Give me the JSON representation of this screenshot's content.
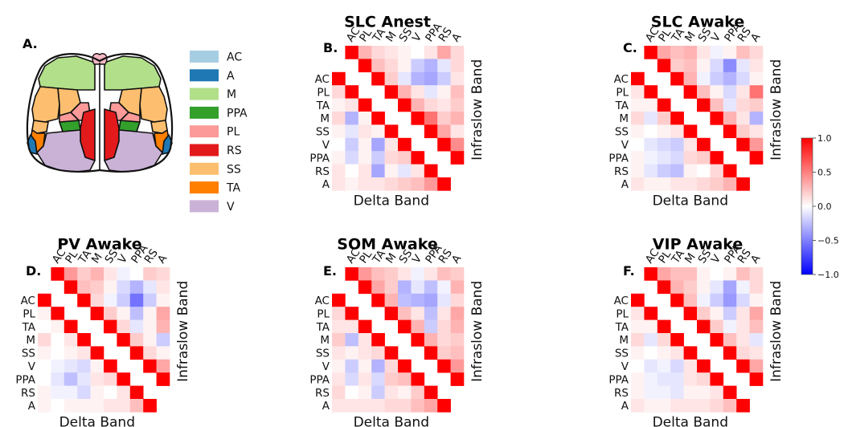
{
  "panel_a": {
    "label": "A.",
    "legend": [
      {
        "name": "AC",
        "color": "#a6cee3"
      },
      {
        "name": "A",
        "color": "#1f78b4"
      },
      {
        "name": "M",
        "color": "#b2df8a"
      },
      {
        "name": "PPA",
        "color": "#33a02c"
      },
      {
        "name": "PL",
        "color": "#fb9a99"
      },
      {
        "name": "RS",
        "color": "#e31a1c"
      },
      {
        "name": "SS",
        "color": "#fdbf6f"
      },
      {
        "name": "TA",
        "color": "#ff7f00"
      },
      {
        "name": "V",
        "color": "#cab2d6"
      }
    ],
    "brain_colors": {
      "olfactory": "#f4b6c2",
      "outline": "#111111"
    }
  },
  "chart_data": [
    {
      "type": "heatmap",
      "panel": "B.",
      "title": "SLC Anest",
      "xlabel": "Delta Band",
      "ylabel": "Infraslow Band",
      "lower_rows": [
        "AC",
        "PL",
        "TA",
        "M",
        "SS",
        "V",
        "PPA",
        "RS",
        "A"
      ],
      "upper_cols": [
        "AC",
        "PL",
        "TA",
        "M",
        "SS",
        "V",
        "PPA",
        "RS",
        "A"
      ],
      "vmin": -1.0,
      "vmax": 1.0,
      "lower": [
        [
          1.0,
          0.15,
          0.05,
          0.1,
          0.0,
          -0.05,
          0.05,
          0.1,
          0.15
        ],
        [
          0.15,
          1.0,
          0.1,
          -0.3,
          -0.05,
          -0.1,
          -0.2,
          -0.05,
          0.05
        ],
        [
          0.05,
          0.1,
          1.0,
          0.05,
          0.1,
          0.05,
          0.05,
          0.1,
          0.1
        ],
        [
          0.15,
          -0.3,
          0.05,
          1.0,
          0.05,
          -0.25,
          -0.2,
          0.1,
          0.2
        ],
        [
          0.05,
          -0.1,
          0.1,
          0.05,
          1.0,
          0.05,
          0.1,
          0.05,
          0.15
        ],
        [
          0.0,
          -0.2,
          0.05,
          -0.35,
          0.1,
          1.0,
          0.15,
          -0.1,
          0.05
        ],
        [
          0.05,
          -0.15,
          0.05,
          -0.2,
          0.15,
          0.2,
          1.0,
          0.1,
          0.15
        ],
        [
          0.1,
          0.0,
          0.1,
          -0.35,
          0.05,
          -0.1,
          0.1,
          1.0,
          0.2
        ],
        [
          0.1,
          0.05,
          0.1,
          0.1,
          0.15,
          0.2,
          0.25,
          0.4,
          1.0
        ]
      ],
      "upper": [
        [
          1.0,
          0.3,
          0.15,
          0.1,
          0.05,
          0.0,
          0.1,
          0.35,
          0.15
        ],
        [
          0.3,
          1.0,
          0.25,
          0.15,
          0.05,
          -0.2,
          -0.3,
          -0.1,
          0.15
        ],
        [
          0.15,
          0.25,
          1.0,
          0.2,
          -0.1,
          -0.3,
          -0.35,
          -0.2,
          0.1
        ],
        [
          0.1,
          0.15,
          0.2,
          1.0,
          0.3,
          0.1,
          -0.1,
          0.05,
          0.25
        ],
        [
          0.05,
          0.05,
          -0.1,
          0.3,
          1.0,
          0.3,
          0.15,
          0.1,
          0.2
        ],
        [
          0.0,
          -0.2,
          -0.3,
          0.1,
          0.3,
          1.0,
          0.55,
          0.2,
          0.3
        ],
        [
          0.1,
          -0.3,
          -0.35,
          -0.1,
          0.15,
          0.55,
          1.0,
          0.35,
          0.1
        ],
        [
          0.35,
          -0.1,
          -0.2,
          0.05,
          0.1,
          0.2,
          0.35,
          1.0,
          0.45
        ],
        [
          0.15,
          0.15,
          0.1,
          0.25,
          0.2,
          0.3,
          0.1,
          0.45,
          1.0
        ]
      ]
    },
    {
      "type": "heatmap",
      "panel": "C.",
      "title": "SLC Awake",
      "xlabel": "Delta Band",
      "ylabel": "Infraslow Band",
      "lower_rows": [
        "AC",
        "PL",
        "TA",
        "M",
        "SS",
        "V",
        "PPA",
        "RS",
        "A"
      ],
      "upper_cols": [
        "AC",
        "PL",
        "TA",
        "M",
        "SS",
        "V",
        "PPA",
        "RS",
        "A"
      ],
      "vmin": -1.0,
      "vmax": 1.0,
      "lower": [
        [
          1.0,
          0.1,
          0.05,
          0.1,
          0.0,
          -0.05,
          0.0,
          0.05,
          0.1
        ],
        [
          0.1,
          1.0,
          0.05,
          -0.25,
          -0.05,
          -0.1,
          -0.15,
          -0.05,
          0.05
        ],
        [
          0.05,
          0.05,
          1.0,
          0.05,
          0.05,
          0.0,
          0.05,
          0.05,
          0.05
        ],
        [
          0.15,
          -0.1,
          0.2,
          1.0,
          0.05,
          -0.15,
          -0.1,
          0.05,
          0.15
        ],
        [
          0.05,
          0.0,
          0.05,
          0.1,
          1.0,
          0.1,
          0.1,
          0.05,
          0.1
        ],
        [
          0.0,
          -0.1,
          -0.15,
          -0.2,
          0.1,
          1.0,
          0.1,
          -0.05,
          0.05
        ],
        [
          0.05,
          -0.05,
          -0.1,
          -0.15,
          0.15,
          0.2,
          1.0,
          0.1,
          0.1
        ],
        [
          0.05,
          -0.1,
          -0.2,
          -0.25,
          0.05,
          0.0,
          0.15,
          1.0,
          0.15
        ],
        [
          0.1,
          0.05,
          0.05,
          0.1,
          0.1,
          0.15,
          0.2,
          0.3,
          1.0
        ]
      ],
      "upper": [
        [
          1.0,
          0.35,
          0.25,
          0.3,
          0.1,
          -0.05,
          0.05,
          0.25,
          0.15
        ],
        [
          0.35,
          1.0,
          0.2,
          0.25,
          0.05,
          -0.15,
          -0.45,
          -0.1,
          0.1
        ],
        [
          0.25,
          0.2,
          1.0,
          0.3,
          -0.05,
          -0.2,
          -0.3,
          -0.15,
          0.05
        ],
        [
          0.3,
          0.25,
          0.3,
          1.0,
          0.25,
          0.05,
          -0.15,
          0.1,
          0.55
        ],
        [
          0.1,
          0.05,
          -0.05,
          0.25,
          1.0,
          0.25,
          -0.1,
          0.15,
          0.2
        ],
        [
          -0.05,
          -0.15,
          -0.2,
          0.05,
          0.25,
          1.0,
          0.3,
          0.1,
          -0.3
        ],
        [
          0.05,
          -0.45,
          -0.3,
          -0.15,
          -0.1,
          0.3,
          1.0,
          0.2,
          0.1
        ],
        [
          0.25,
          -0.1,
          -0.15,
          0.1,
          0.15,
          0.1,
          0.2,
          1.0,
          0.4
        ],
        [
          0.15,
          0.1,
          0.05,
          0.55,
          0.2,
          -0.3,
          0.1,
          0.4,
          1.0
        ]
      ]
    },
    {
      "type": "heatmap",
      "panel": "D.",
      "title": "PV Awake",
      "xlabel": "Delta Band",
      "ylabel": "Infraslow Band",
      "lower_rows": [
        "AC",
        "PL",
        "TA",
        "M",
        "SS",
        "V",
        "PPA",
        "RS",
        "A"
      ],
      "upper_cols": [
        "AC",
        "PL",
        "TA",
        "M",
        "SS",
        "V",
        "PPA",
        "RS",
        "A"
      ],
      "vmin": -1.0,
      "vmax": 1.0,
      "lower": [
        [
          1.0,
          0.05,
          0.0,
          0.05,
          0.0,
          -0.05,
          0.0,
          0.05,
          0.05
        ],
        [
          0.05,
          1.0,
          0.05,
          -0.1,
          0.0,
          -0.05,
          -0.1,
          0.0,
          0.05
        ],
        [
          0.0,
          0.05,
          1.0,
          0.05,
          0.05,
          0.0,
          0.0,
          0.05,
          0.0
        ],
        [
          0.15,
          0.0,
          0.1,
          1.0,
          0.05,
          -0.1,
          -0.05,
          0.05,
          0.05
        ],
        [
          0.05,
          0.0,
          0.05,
          0.1,
          1.0,
          0.05,
          0.05,
          0.0,
          0.05
        ],
        [
          0.0,
          -0.05,
          -0.1,
          -0.15,
          0.05,
          1.0,
          0.1,
          -0.05,
          0.0
        ],
        [
          0.0,
          -0.1,
          -0.25,
          -0.1,
          0.1,
          0.15,
          1.0,
          0.05,
          0.05
        ],
        [
          0.05,
          -0.05,
          -0.05,
          -0.15,
          0.05,
          0.0,
          0.1,
          1.0,
          0.1
        ],
        [
          0.05,
          0.0,
          0.05,
          0.05,
          0.05,
          0.1,
          0.1,
          0.25,
          1.0
        ]
      ],
      "upper": [
        [
          1.0,
          0.4,
          0.2,
          0.3,
          0.1,
          -0.05,
          0.0,
          0.2,
          0.15
        ],
        [
          0.4,
          1.0,
          0.25,
          0.2,
          0.05,
          -0.15,
          -0.3,
          -0.1,
          0.1
        ],
        [
          0.2,
          0.25,
          1.0,
          0.15,
          -0.05,
          -0.2,
          -0.55,
          -0.2,
          0.05
        ],
        [
          0.3,
          0.2,
          0.15,
          1.0,
          0.2,
          0.05,
          -0.25,
          0.05,
          0.35
        ],
        [
          0.1,
          0.05,
          -0.05,
          0.2,
          1.0,
          0.15,
          -0.1,
          0.05,
          0.3
        ],
        [
          -0.05,
          -0.15,
          -0.2,
          0.05,
          0.15,
          1.0,
          0.2,
          0.05,
          -0.2
        ],
        [
          0.0,
          -0.3,
          -0.55,
          -0.25,
          -0.1,
          0.2,
          1.0,
          0.15,
          0.05
        ],
        [
          0.2,
          -0.1,
          -0.2,
          0.05,
          0.05,
          0.05,
          0.15,
          1.0,
          0.35
        ],
        [
          0.15,
          0.1,
          0.05,
          0.35,
          0.3,
          -0.2,
          0.05,
          0.35,
          1.0
        ]
      ]
    },
    {
      "type": "heatmap",
      "panel": "E.",
      "title": "SOM Awake",
      "xlabel": "Delta Band",
      "ylabel": "Infraslow Band",
      "lower_rows": [
        "AC",
        "PL",
        "TA",
        "M",
        "SS",
        "V",
        "PPA",
        "RS",
        "A"
      ],
      "upper_cols": [
        "AC",
        "PL",
        "TA",
        "M",
        "SS",
        "V",
        "PPA",
        "RS",
        "A"
      ],
      "vmin": -1.0,
      "vmax": 1.0,
      "lower": [
        [
          1.0,
          0.15,
          0.1,
          0.1,
          0.05,
          0.0,
          0.05,
          0.1,
          0.1
        ],
        [
          0.15,
          1.0,
          0.1,
          -0.2,
          0.0,
          -0.1,
          -0.15,
          0.0,
          0.05
        ],
        [
          0.1,
          0.1,
          1.0,
          0.1,
          0.05,
          0.05,
          0.05,
          0.1,
          0.05
        ],
        [
          0.2,
          -0.25,
          0.1,
          1.0,
          0.1,
          -0.1,
          -0.1,
          0.1,
          0.15
        ],
        [
          0.1,
          0.05,
          0.1,
          0.15,
          1.0,
          0.15,
          0.1,
          0.05,
          0.1
        ],
        [
          0.05,
          -0.2,
          0.05,
          -0.3,
          0.15,
          1.0,
          0.2,
          -0.05,
          0.1
        ],
        [
          0.1,
          -0.15,
          0.1,
          -0.15,
          0.2,
          0.25,
          1.0,
          0.15,
          0.15
        ],
        [
          0.15,
          0.0,
          0.05,
          -0.2,
          0.1,
          0.05,
          0.2,
          1.0,
          0.25
        ],
        [
          0.1,
          0.1,
          0.1,
          0.1,
          0.15,
          0.15,
          0.25,
          0.35,
          1.0
        ]
      ],
      "upper": [
        [
          1.0,
          0.4,
          0.25,
          0.2,
          0.1,
          -0.05,
          0.1,
          0.25,
          0.2
        ],
        [
          0.4,
          1.0,
          0.35,
          0.2,
          -0.3,
          -0.1,
          -0.25,
          -0.05,
          0.3
        ],
        [
          0.25,
          0.35,
          1.0,
          0.3,
          -0.25,
          -0.3,
          -0.35,
          -0.1,
          0.15
        ],
        [
          0.2,
          0.2,
          0.3,
          1.0,
          0.25,
          0.1,
          -0.25,
          0.1,
          0.35
        ],
        [
          0.1,
          -0.3,
          -0.25,
          0.25,
          1.0,
          0.3,
          -0.2,
          0.15,
          0.3
        ],
        [
          -0.05,
          -0.1,
          -0.3,
          0.1,
          0.3,
          1.0,
          0.3,
          0.15,
          0.2
        ],
        [
          0.1,
          -0.25,
          -0.35,
          -0.25,
          -0.2,
          0.3,
          1.0,
          0.2,
          0.25
        ],
        [
          0.25,
          -0.05,
          -0.1,
          0.1,
          0.15,
          0.15,
          0.2,
          1.0,
          0.4
        ],
        [
          0.2,
          0.3,
          0.15,
          0.35,
          0.3,
          0.2,
          0.25,
          0.4,
          1.0
        ]
      ]
    },
    {
      "type": "heatmap",
      "panel": "F.",
      "title": "VIP Awake",
      "xlabel": "Delta Band",
      "ylabel": "Infraslow Band",
      "lower_rows": [
        "AC",
        "PL",
        "TA",
        "M",
        "SS",
        "V",
        "PPA",
        "RS",
        "A"
      ],
      "upper_cols": [
        "AC",
        "PL",
        "TA",
        "M",
        "SS",
        "V",
        "PPA",
        "RS",
        "A"
      ],
      "vmin": -1.0,
      "vmax": 1.0,
      "lower": [
        [
          1.0,
          0.1,
          0.05,
          0.1,
          0.0,
          0.0,
          0.05,
          0.05,
          0.1
        ],
        [
          0.1,
          1.0,
          0.05,
          -0.15,
          0.0,
          -0.05,
          -0.1,
          0.0,
          0.05
        ],
        [
          0.05,
          0.05,
          1.0,
          0.05,
          0.05,
          0.0,
          0.05,
          0.05,
          0.05
        ],
        [
          0.15,
          -0.1,
          0.15,
          1.0,
          0.05,
          -0.1,
          -0.05,
          0.05,
          0.1
        ],
        [
          0.05,
          0.0,
          0.05,
          0.1,
          1.0,
          0.1,
          0.1,
          0.05,
          0.1
        ],
        [
          0.0,
          -0.1,
          -0.05,
          -0.15,
          0.1,
          1.0,
          0.1,
          0.0,
          0.05
        ],
        [
          0.05,
          -0.05,
          -0.1,
          -0.1,
          0.1,
          0.15,
          1.0,
          0.1,
          0.1
        ],
        [
          0.05,
          -0.05,
          -0.05,
          -0.1,
          0.05,
          0.05,
          0.1,
          1.0,
          0.15
        ],
        [
          0.1,
          0.05,
          0.05,
          0.1,
          0.1,
          0.1,
          0.15,
          0.25,
          1.0
        ]
      ],
      "upper": [
        [
          1.0,
          0.35,
          0.25,
          0.25,
          0.05,
          0.0,
          0.05,
          0.25,
          0.15
        ],
        [
          0.35,
          1.0,
          0.3,
          0.2,
          0.05,
          -0.1,
          -0.35,
          -0.05,
          0.15
        ],
        [
          0.25,
          0.3,
          1.0,
          0.25,
          -0.05,
          -0.2,
          -0.4,
          -0.15,
          0.05
        ],
        [
          0.25,
          0.2,
          0.25,
          1.0,
          0.2,
          0.05,
          -0.2,
          0.1,
          0.35
        ],
        [
          0.05,
          0.05,
          -0.05,
          0.2,
          1.0,
          0.2,
          -0.05,
          0.1,
          0.25
        ],
        [
          0.0,
          -0.1,
          -0.2,
          0.05,
          0.2,
          1.0,
          0.25,
          0.1,
          -0.1
        ],
        [
          0.05,
          -0.35,
          -0.4,
          -0.2,
          -0.05,
          0.25,
          1.0,
          0.15,
          0.1
        ],
        [
          0.25,
          -0.05,
          -0.15,
          0.1,
          0.1,
          0.1,
          0.15,
          1.0,
          0.35
        ],
        [
          0.15,
          0.15,
          0.05,
          0.35,
          0.25,
          -0.1,
          0.1,
          0.35,
          1.0
        ]
      ]
    }
  ],
  "colorbar": {
    "ticks": [
      "1.0",
      "0.5",
      "0.0",
      "−0.5",
      "−1.0"
    ],
    "tick_values": [
      1.0,
      0.5,
      0.0,
      -0.5,
      -1.0
    ],
    "vmin": -1.0,
    "vmax": 1.0,
    "colormap": "bwr"
  }
}
